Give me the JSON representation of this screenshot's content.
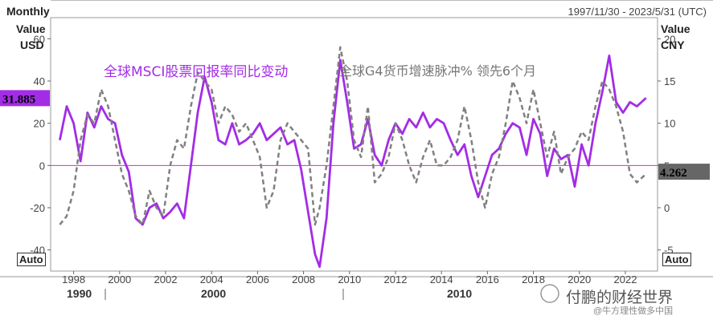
{
  "header": {
    "frequency": "Monthly",
    "date_range": "1997/11/30 - 2023/5/31 (UTC)",
    "left_axis_title_1": "Value",
    "left_axis_title_2": "USD",
    "right_axis_title_1": "Value",
    "right_axis_title_2": "CNY"
  },
  "controls": {
    "left_auto": "Auto",
    "right_auto": "Auto"
  },
  "watermark": {
    "text": "付鹏的财经世界",
    "sub": "@牛方理性做多中国"
  },
  "colors": {
    "series1": "#a32ce6",
    "series2": "#808080",
    "zero_line": "#cc33cc",
    "last_value_bg_left": "#a32ce6",
    "last_value_bg_right": "#666666"
  },
  "chart_data": {
    "type": "line",
    "left_ylim": [
      -50,
      70
    ],
    "right_ylim": [
      -7.5,
      22.5
    ],
    "xlim": [
      1997.5,
      2023.9
    ],
    "left_ticks": [
      60,
      40,
      20,
      0,
      -20,
      -40
    ],
    "right_ticks": [
      20,
      15,
      10,
      5,
      0,
      -5
    ],
    "x_ticks": [
      "1998",
      "2000",
      "2002",
      "2004",
      "2006",
      "2008",
      "2010",
      "2012",
      "2014",
      "2016",
      "2018",
      "2020",
      "2022"
    ],
    "decade_labels": [
      "1990",
      "2000",
      "2010"
    ],
    "grid": false,
    "series": [
      {
        "name": "全球MSCI股票回报率同比变动",
        "axis": "left",
        "color": "#a32ce6",
        "last_value": "31.885",
        "x": [
          1997.9,
          1998.2,
          1998.5,
          1998.8,
          1999.1,
          1999.4,
          1999.7,
          2000.0,
          2000.3,
          2000.6,
          2000.9,
          2001.2,
          2001.5,
          2001.8,
          2002.1,
          2002.4,
          2002.7,
          2003.0,
          2003.3,
          2003.6,
          2003.9,
          2004.2,
          2004.5,
          2004.8,
          2005.1,
          2005.4,
          2005.7,
          2006.0,
          2006.3,
          2006.6,
          2006.9,
          2007.2,
          2007.5,
          2007.8,
          2008.1,
          2008.4,
          2008.7,
          2009.0,
          2009.2,
          2009.5,
          2009.8,
          2010.1,
          2010.4,
          2010.7,
          2011.0,
          2011.3,
          2011.6,
          2011.9,
          2012.2,
          2012.5,
          2012.8,
          2013.1,
          2013.4,
          2013.7,
          2014.0,
          2014.3,
          2014.6,
          2014.9,
          2015.2,
          2015.5,
          2015.8,
          2016.1,
          2016.4,
          2016.7,
          2017.0,
          2017.3,
          2017.6,
          2017.9,
          2018.2,
          2018.5,
          2018.8,
          2019.1,
          2019.4,
          2019.7,
          2020.0,
          2020.3,
          2020.6,
          2020.9,
          2021.2,
          2021.5,
          2021.8,
          2022.1,
          2022.4,
          2022.7,
          2023.0,
          2023.4
        ],
        "y": [
          12,
          28,
          20,
          2,
          25,
          18,
          28,
          22,
          20,
          5,
          -3,
          -25,
          -28,
          -20,
          -18,
          -25,
          -22,
          -18,
          -25,
          0,
          25,
          42,
          30,
          12,
          10,
          20,
          10,
          12,
          15,
          20,
          12,
          15,
          18,
          10,
          12,
          -2,
          -22,
          -42,
          -48,
          -25,
          20,
          50,
          30,
          8,
          10,
          22,
          5,
          0,
          12,
          20,
          15,
          22,
          18,
          25,
          18,
          22,
          20,
          12,
          5,
          10,
          -5,
          -15,
          -5,
          5,
          8,
          15,
          20,
          18,
          5,
          22,
          15,
          -5,
          8,
          3,
          5,
          -10,
          10,
          0,
          20,
          35,
          52,
          30,
          25,
          30,
          28,
          32
        ]
      },
      {
        "name": "全球G4货币增速脉冲% 领先6个月",
        "axis": "right",
        "color": "#808080",
        "dash": true,
        "last_value": "4.262",
        "x": [
          1997.9,
          1998.2,
          1998.5,
          1998.8,
          1999.1,
          1999.4,
          1999.7,
          2000.0,
          2000.3,
          2000.6,
          2000.9,
          2001.2,
          2001.5,
          2001.8,
          2002.1,
          2002.4,
          2002.7,
          2003.0,
          2003.3,
          2003.6,
          2003.9,
          2004.2,
          2004.5,
          2004.8,
          2005.1,
          2005.4,
          2005.7,
          2006.0,
          2006.3,
          2006.6,
          2006.9,
          2007.2,
          2007.5,
          2007.8,
          2008.1,
          2008.4,
          2008.7,
          2009.0,
          2009.2,
          2009.5,
          2009.8,
          2010.1,
          2010.4,
          2010.7,
          2011.0,
          2011.3,
          2011.6,
          2011.9,
          2012.2,
          2012.5,
          2012.8,
          2013.1,
          2013.4,
          2013.7,
          2014.0,
          2014.3,
          2014.6,
          2014.9,
          2015.2,
          2015.5,
          2015.8,
          2016.1,
          2016.4,
          2016.7,
          2017.0,
          2017.3,
          2017.6,
          2017.9,
          2018.2,
          2018.5,
          2018.8,
          2019.1,
          2019.4,
          2019.7,
          2020.0,
          2020.3,
          2020.6,
          2020.9,
          2021.2,
          2021.5,
          2021.8,
          2022.1,
          2022.4,
          2022.7,
          2023.0,
          2023.4
        ],
        "y": [
          -2,
          -1,
          2,
          8,
          11,
          10,
          14,
          12,
          8,
          4,
          2,
          -1,
          -2,
          2,
          0,
          -1,
          5,
          8,
          7,
          12,
          16,
          15,
          14,
          10,
          12,
          11,
          9,
          10,
          8,
          6,
          0,
          2,
          8,
          10,
          9,
          8,
          7,
          -2,
          0,
          5,
          12,
          19,
          15,
          8,
          6,
          12,
          3,
          4,
          6,
          10,
          8,
          5,
          3,
          6,
          8,
          5,
          5,
          6,
          8,
          12,
          8,
          3,
          0,
          4,
          6,
          10,
          15,
          13,
          10,
          14,
          10,
          6,
          9,
          4,
          6,
          7,
          9,
          8,
          12,
          15,
          14,
          12,
          9,
          4,
          3,
          4
        ]
      }
    ]
  }
}
